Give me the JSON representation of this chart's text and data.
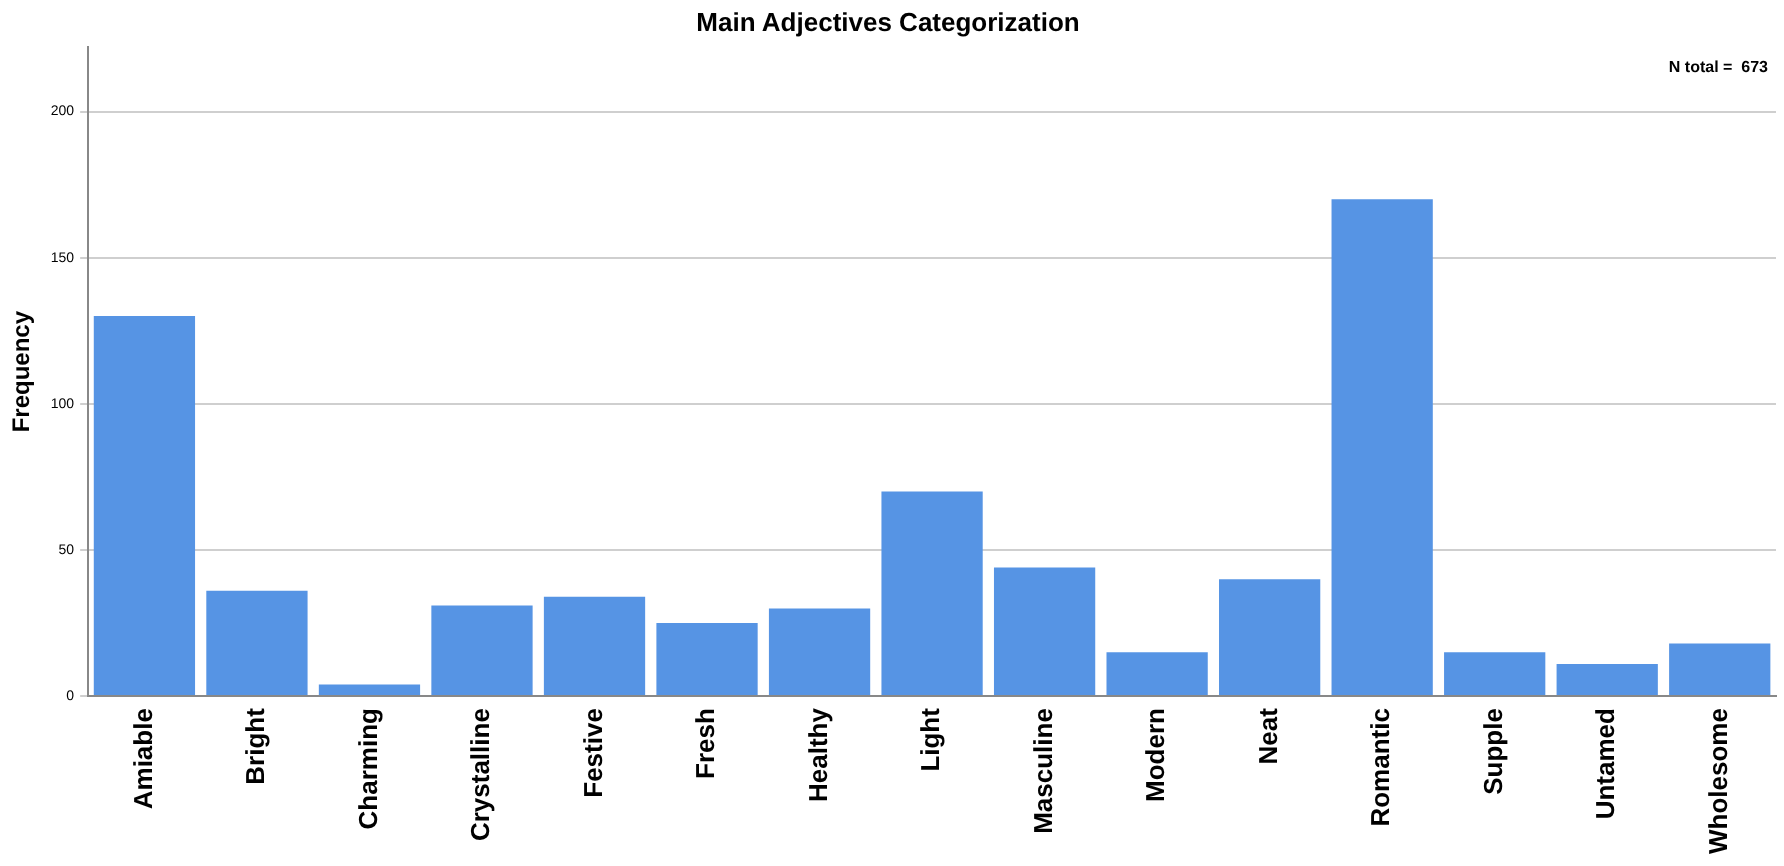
{
  "chart_data": {
    "type": "bar",
    "title": "Main Adjectives Categorization",
    "ylabel": "Frequency",
    "categories": [
      "Amiable",
      "Bright",
      "Charming",
      "Crystalline",
      "Festive",
      "Fresh",
      "Healthy",
      "Light",
      "Masculine",
      "Modern",
      "Neat",
      "Romantic",
      "Supple",
      "Untamed",
      "Wholesome"
    ],
    "values": [
      130,
      36,
      4,
      31,
      34,
      25,
      30,
      70,
      44,
      15,
      40,
      170,
      15,
      11,
      18
    ],
    "color": "#5694e4",
    "ylim": [
      0,
      222
    ],
    "yticks": [
      0,
      50,
      100,
      150,
      200
    ],
    "grid": "y",
    "legend": false,
    "annotations": [
      "N total =  673"
    ]
  }
}
